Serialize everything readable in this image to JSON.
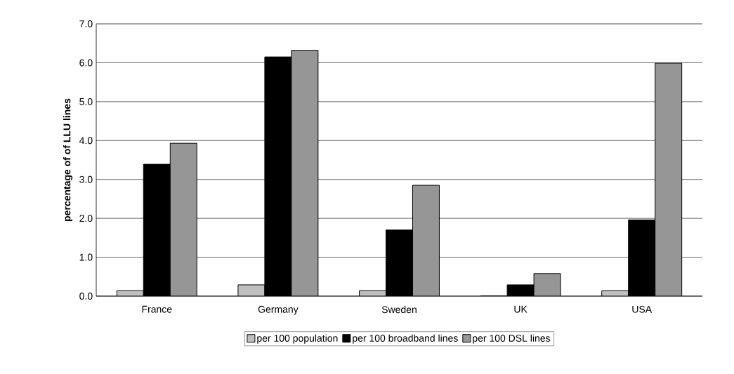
{
  "chart_data": {
    "type": "bar",
    "ylabel": "percentage of of LLU lines",
    "categories": [
      "France",
      "Germany",
      "Sweden",
      "UK",
      "USA"
    ],
    "series": [
      {
        "name": "per 100 population",
        "color": "#c0c0c0",
        "values": [
          0.14,
          0.29,
          0.14,
          0,
          0.14
        ]
      },
      {
        "name": "per 100 broadband lines",
        "color": "#000000",
        "values": [
          3.39,
          6.15,
          1.7,
          0.29,
          1.96
        ]
      },
      {
        "name": "per 100 DSL lines",
        "color": "#969696",
        "values": [
          3.93,
          6.32,
          2.85,
          0.58,
          5.99
        ]
      }
    ],
    "ylim": [
      0,
      7
    ],
    "yticks": [
      {
        "value": 0,
        "label": "0.0"
      },
      {
        "value": 1,
        "label": "1.0"
      },
      {
        "value": 2,
        "label": "2.0"
      },
      {
        "value": 3,
        "label": "3.0"
      },
      {
        "value": 4,
        "label": "4.0"
      },
      {
        "value": 5,
        "label": "5.0"
      },
      {
        "value": 6,
        "label": "6.0"
      },
      {
        "value": 7,
        "label": "7.0"
      }
    ],
    "grid": "y",
    "legend": "bottom"
  }
}
